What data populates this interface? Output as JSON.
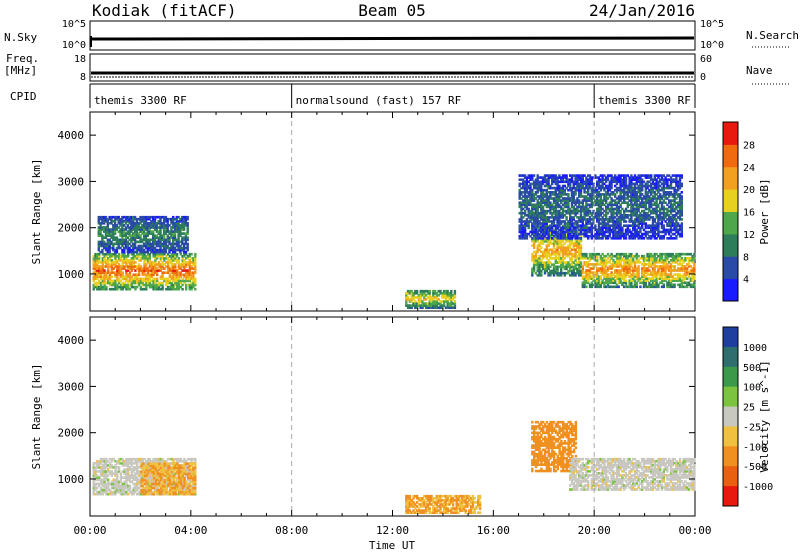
{
  "header": {
    "station": "Kodiak (fitACF)",
    "beam": "Beam 05",
    "date": "24/Jan/2016"
  },
  "strip_nsky": {
    "left_label": "N.Sky",
    "right_label": "N.Search",
    "top_tick": "10^5",
    "bottom_tick": "10^0",
    "right_top_tick": "10^5",
    "right_bottom_tick": "10^0"
  },
  "strip_freq": {
    "left_label_1": "Freq.",
    "left_label_2": "[MHz]",
    "right_label": "Nave",
    "left_top_tick": "18",
    "left_bottom_tick": "8",
    "right_top_tick": "60",
    "right_bottom_tick": "0"
  },
  "cpid": {
    "label": "CPID",
    "segments": [
      {
        "name": "themis 3300 RF",
        "start": 0,
        "end": 8
      },
      {
        "name": "normalsound (fast) 157 RF",
        "start": 8,
        "end": 20
      },
      {
        "name": "themis 3300 RF",
        "start": 20,
        "end": 24
      }
    ]
  },
  "x_axis": {
    "label": "Time UT",
    "ticks": [
      "00:00",
      "04:00",
      "08:00",
      "12:00",
      "16:00",
      "20:00",
      "00:00"
    ]
  },
  "panel_power": {
    "ylabel": "Slant Range [km]",
    "yticks": [
      "1000",
      "2000",
      "3000",
      "4000"
    ],
    "colorbar_label": "Power [dB]",
    "colorbar_ticks": [
      "4",
      "8",
      "12",
      "16",
      "20",
      "24",
      "28"
    ],
    "colors": [
      "#1a1aff",
      "#2a4aa8",
      "#2e7d5a",
      "#4ea84a",
      "#e8d020",
      "#f2a020",
      "#f06a10",
      "#e81a10"
    ]
  },
  "panel_velocity": {
    "ylabel": "Slant Range [km]",
    "yticks": [
      "1000",
      "2000",
      "3000",
      "4000"
    ],
    "colorbar_label": "Velocity [m s^-1]",
    "colorbar_ticks": [
      "1000",
      "500",
      "100",
      "25",
      "-25",
      "-100",
      "-500",
      "-1000"
    ],
    "colors": [
      "#1f3fa0",
      "#2e6e6e",
      "#3a9a4a",
      "#7cc440",
      "#c8c8c0",
      "#f0c040",
      "#f09020",
      "#e86010",
      "#e81a10"
    ]
  },
  "chart_data": {
    "type": "heatmap",
    "x_range_hours": [
      0,
      24
    ],
    "y_range_km": [
      200,
      4500
    ],
    "cpid_boundaries_hours": [
      8,
      20
    ],
    "power_echo_regions": [
      {
        "t_start": 0.1,
        "t_end": 4.2,
        "r_low": 700,
        "r_high": 1500,
        "level_db": 24
      },
      {
        "t_start": 0.3,
        "t_end": 3.9,
        "r_low": 1500,
        "r_high": 2300,
        "level_db": 10
      },
      {
        "t_start": 12.5,
        "t_end": 14.5,
        "r_low": 300,
        "r_high": 700,
        "level_db": 18
      },
      {
        "t_start": 17.5,
        "t_end": 19.5,
        "r_low": 1000,
        "r_high": 2100,
        "level_db": 20
      },
      {
        "t_start": 19.5,
        "t_end": 24.0,
        "r_low": 750,
        "r_high": 1500,
        "level_db": 22
      },
      {
        "t_start": 17.0,
        "t_end": 23.5,
        "r_low": 1800,
        "r_high": 3200,
        "level_db": 8
      }
    ],
    "velocity_echo_regions": [
      {
        "t_start": 0.1,
        "t_end": 4.2,
        "r_low": 700,
        "r_high": 1500,
        "velocity": 0
      },
      {
        "t_start": 2.0,
        "t_end": 4.2,
        "r_low": 700,
        "r_high": 1400,
        "velocity": -100
      },
      {
        "t_start": 12.5,
        "t_end": 15.5,
        "r_low": 300,
        "r_high": 700,
        "velocity": -100
      },
      {
        "t_start": 17.5,
        "t_end": 19.3,
        "r_low": 1200,
        "r_high": 2300,
        "velocity": -300
      },
      {
        "t_start": 19.0,
        "t_end": 24.0,
        "r_low": 800,
        "r_high": 1500,
        "velocity": 0
      }
    ]
  }
}
